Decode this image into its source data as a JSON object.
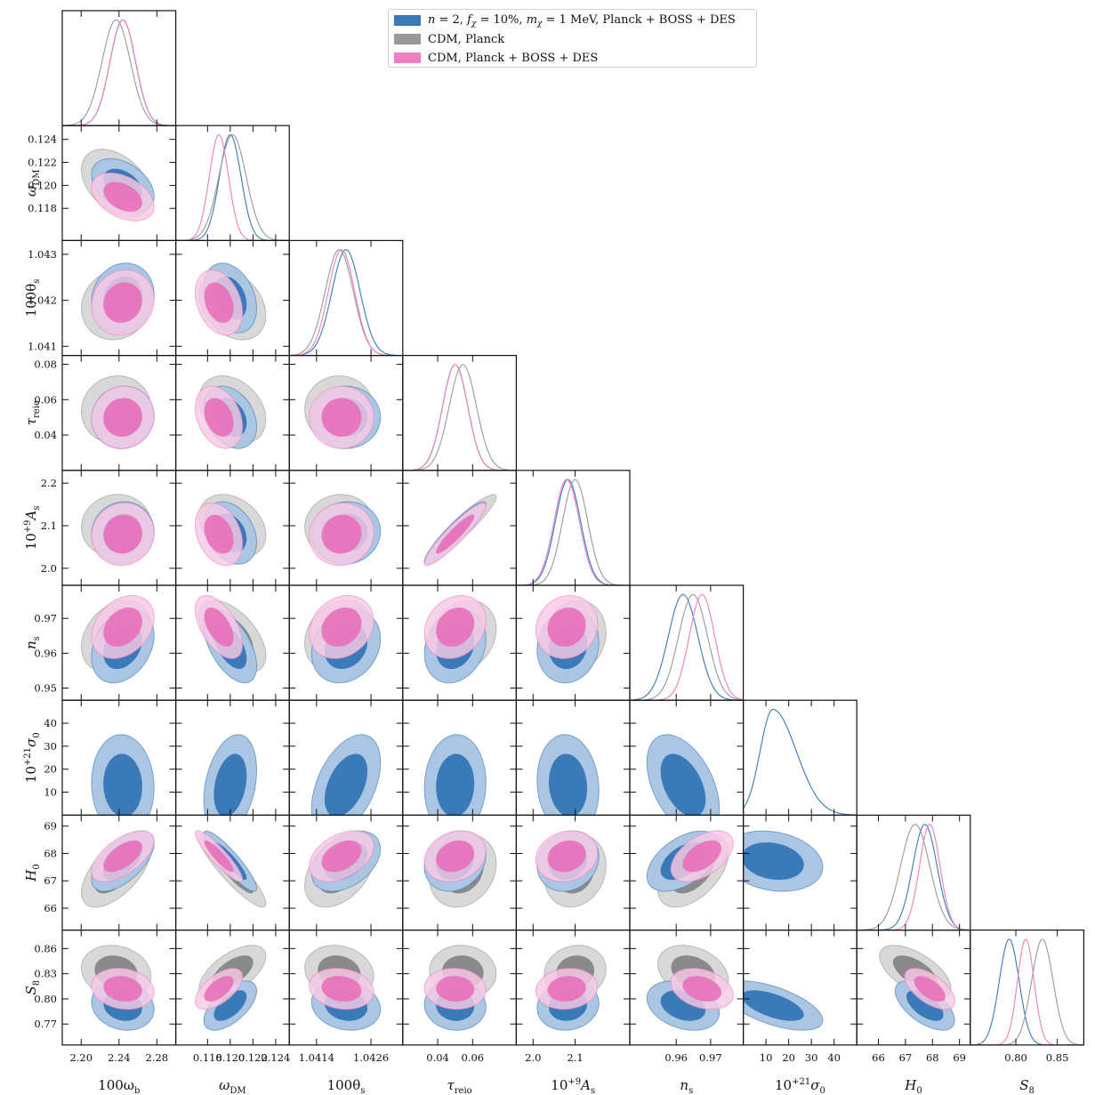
{
  "chart_data": {
    "type": "corner-plot",
    "title": "",
    "parameters": [
      {
        "key": "omega_b",
        "label": "100ω_b",
        "main": "100ω",
        "sub": "b",
        "range": [
          2.18,
          2.3
        ],
        "ticks": [
          2.2,
          2.24,
          2.28
        ],
        "tick_labels": [
          "2.20",
          "2.24",
          "2.28"
        ]
      },
      {
        "key": "omega_dm",
        "label": "ω_DM",
        "main": "ω",
        "sub": "DM",
        "range": [
          0.1152,
          0.1252
        ],
        "ticks": [
          0.118,
          0.12,
          0.122,
          0.124
        ],
        "tick_labels": [
          "0.118",
          "0.120",
          "0.122",
          "0.124"
        ]
      },
      {
        "key": "theta_s",
        "label": "100θ_s",
        "main": "100θ",
        "sub": "s",
        "range": [
          1.0408,
          1.0433
        ],
        "ticks": [
          1.041,
          1.042,
          1.043
        ],
        "tick_labels": [
          "1.041",
          "1.042",
          "1.043"
        ],
        "x_ticks": [
          1.0414,
          1.0426
        ],
        "x_tick_labels": [
          "1.0414",
          "1.0426"
        ]
      },
      {
        "key": "tau_reio",
        "label": "τ_reio",
        "main": "τ",
        "sub": "reio",
        "range": [
          0.02,
          0.085
        ],
        "ticks": [
          0.04,
          0.06,
          0.08
        ],
        "tick_labels": [
          "0.04",
          "0.06",
          "0.08"
        ],
        "x_ticks": [
          0.04,
          0.06
        ],
        "x_tick_labels": [
          "0.04",
          "0.06"
        ]
      },
      {
        "key": "A_s",
        "label": "10^{+9}A_s",
        "main": "10",
        "sup": "+9",
        "main2": "A",
        "sub": "s",
        "range": [
          1.96,
          2.23
        ],
        "ticks": [
          2.0,
          2.1,
          2.2
        ],
        "tick_labels": [
          "2.0",
          "2.1",
          "2.2"
        ],
        "x_ticks": [
          2.0,
          2.1
        ],
        "x_tick_labels": [
          "2.0",
          "2.1"
        ]
      },
      {
        "key": "n_s",
        "label": "n_s",
        "main": "n",
        "sub": "s",
        "range": [
          0.9465,
          0.9795
        ],
        "ticks": [
          0.95,
          0.96,
          0.97
        ],
        "tick_labels": [
          "0.95",
          "0.96",
          "0.97"
        ],
        "x_ticks": [
          0.96,
          0.97
        ],
        "x_tick_labels": [
          "0.96",
          "0.97"
        ]
      },
      {
        "key": "sigma_0",
        "label": "10^{+21}σ_0",
        "main": "10",
        "sup": "+21",
        "main2": "σ",
        "sub": "0",
        "range": [
          0,
          50
        ],
        "ticks": [
          10,
          20,
          30,
          40
        ],
        "tick_labels": [
          "10",
          "20",
          "30",
          "40"
        ]
      },
      {
        "key": "H0",
        "label": "H_0",
        "main": "H",
        "sub": "0",
        "range": [
          65.2,
          69.4
        ],
        "ticks": [
          66,
          67,
          68,
          69
        ],
        "tick_labels": [
          "66",
          "67",
          "68",
          "69"
        ]
      },
      {
        "key": "S8",
        "label": "S_8",
        "main": "S",
        "sub": "8",
        "range": [
          0.745,
          0.882
        ],
        "ticks": [
          0.77,
          0.8,
          0.83,
          0.86
        ],
        "tick_labels": [
          "0.77",
          "0.80",
          "0.83",
          "0.86"
        ],
        "x_ticks": [
          0.8,
          0.85
        ],
        "x_tick_labels": [
          "0.80",
          "0.85"
        ]
      }
    ],
    "legend": [
      {
        "name": "n = 2, f_χ = 10%, m_χ = 1 MeV, Planck + BOSS + DES",
        "parts": [
          [
            "i",
            "n"
          ],
          [
            "t",
            " = 2, "
          ],
          [
            "i",
            "f"
          ],
          [
            "sub",
            "χ"
          ],
          [
            "t",
            " = 10%, "
          ],
          [
            "i",
            "m"
          ],
          [
            "sub",
            "χ"
          ],
          [
            "t",
            " = 1 MeV, Planck + BOSS + DES"
          ]
        ],
        "color": "#3a7ab8"
      },
      {
        "name": "CDM, Planck",
        "parts": [
          [
            "t",
            "CDM, Planck"
          ]
        ],
        "color": "#999999"
      },
      {
        "name": "CDM, Planck + BOSS + DES",
        "parts": [
          [
            "t",
            "CDM, Planck + BOSS + DES"
          ]
        ],
        "color": "#f07fc2"
      }
    ],
    "legend_placement": "top-center",
    "series": [
      {
        "name": "n = 2, f_χ = 10%, m_χ = 1 MeV, Planck + BOSS + DES",
        "color": "#3a7ab8",
        "fill": "#3a7ab8",
        "fill_light": "#aac6e2",
        "mean": {
          "omega_b": 2.244,
          "omega_dm": 0.12,
          "theta_s": 1.04205,
          "tau_reio": 0.05,
          "A_s": 2.083,
          "n_s": 0.962,
          "sigma_0": 13,
          "H0": 67.72,
          "S8": 0.792
        },
        "sigma": {
          "omega_b": 0.0135,
          "omega_dm": 0.00095,
          "theta_s": 0.00031,
          "tau_reio": 0.0072,
          "A_s": 0.03,
          "n_s": 0.0043,
          "sigma_0": 9,
          "H0": 0.45,
          "S8": 0.012
        }
      },
      {
        "name": "CDM, Planck",
        "color": "#999999",
        "fill": "#8a8a8a",
        "fill_light": "#d8d8d8",
        "mean": {
          "omega_b": 2.237,
          "omega_dm": 0.1202,
          "theta_s": 1.0419,
          "tau_reio": 0.0544,
          "A_s": 2.1,
          "n_s": 0.9649,
          "H0": 67.36,
          "S8": 0.832
        },
        "sigma": {
          "omega_b": 0.015,
          "omega_dm": 0.0012,
          "theta_s": 0.00031,
          "tau_reio": 0.0078,
          "A_s": 0.03,
          "n_s": 0.0042,
          "H0": 0.54,
          "S8": 0.013
        }
      },
      {
        "name": "CDM, Planck + BOSS + DES",
        "color": "#f07fc2",
        "fill": "#e96bb8",
        "fill_light": "#f8c9e4",
        "mean": {
          "omega_b": 2.244,
          "omega_dm": 0.119,
          "theta_s": 1.04195,
          "tau_reio": 0.05,
          "A_s": 2.08,
          "n_s": 0.9675,
          "H0": 67.9,
          "S8": 0.812
        },
        "sigma": {
          "omega_b": 0.0135,
          "omega_dm": 0.00085,
          "theta_s": 0.00029,
          "tau_reio": 0.0072,
          "A_s": 0.03,
          "n_s": 0.0037,
          "H0": 0.38,
          "S8": 0.01
        }
      }
    ],
    "correlations_note": "pairwise correlation coefficients between parameters, estimated from contour tilt",
    "correlations": {
      "omega_b|omega_dm": -0.4,
      "omega_b|tau_reio": 0.05,
      "omega_b|A_s": 0.05,
      "omega_b|n_s": 0.3,
      "omega_b|sigma_0": -0.05,
      "omega_b|H0": 0.6,
      "omega_b|S8": -0.15,
      "omega_dm|theta_s": -0.3,
      "omega_dm|tau_reio": -0.3,
      "omega_dm|A_s": -0.3,
      "omega_dm|n_s": -0.55,
      "omega_dm|sigma_0": 0.3,
      "omega_dm|H0": -0.9,
      "omega_dm|S8": 0.6,
      "theta_s|omega_b": 0.1,
      "theta_s|A_s": 0.05,
      "theta_s|n_s": 0.2,
      "theta_s|sigma_0": 0.45,
      "theta_s|H0": 0.4,
      "theta_s|S8": -0.15,
      "tau_reio|A_s": 0.92,
      "tau_reio|n_s": 0.2,
      "tau_reio|sigma_0": 0.05,
      "tau_reio|H0": 0.2,
      "tau_reio|S8": -0.05,
      "A_s|n_s": 0.1,
      "A_s|sigma_0": -0.1,
      "A_s|H0": 0.15,
      "A_s|S8": 0.1,
      "n_s|sigma_0": -0.45,
      "n_s|H0": 0.5,
      "n_s|S8": -0.3,
      "sigma_0|H0": -0.2,
      "sigma_0|S8": -0.6,
      "H0|S8": -0.6
    }
  }
}
